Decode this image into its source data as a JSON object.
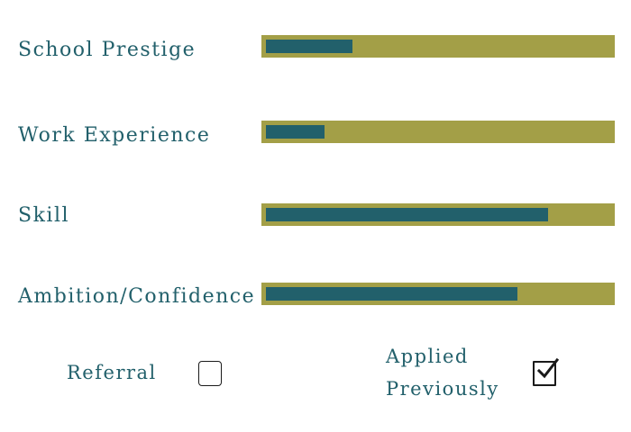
{
  "metrics": [
    {
      "label": "School Prestige",
      "value": 0.25
    },
    {
      "label": "Work Experience",
      "value": 0.17
    },
    {
      "label": "Skill",
      "value": 0.82
    },
    {
      "label": "Ambition/Confidence",
      "value": 0.73
    }
  ],
  "checks": {
    "referral": {
      "label": "Referral",
      "checked": false
    },
    "applied": {
      "label_line1": "Applied",
      "label_line2": "Previously",
      "checked": true
    }
  },
  "colors": {
    "text": "#22606b",
    "track": "#a39f47",
    "fill": "#22606b"
  }
}
